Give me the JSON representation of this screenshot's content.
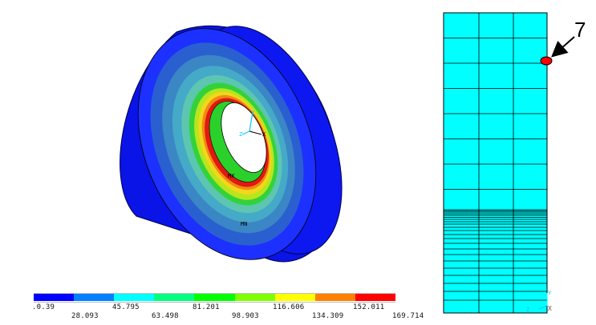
{
  "colors": {
    "contour": [
      "#0000ff",
      "#0080ff",
      "#00ffff",
      "#00ff80",
      "#00ff00",
      "#80ff00",
      "#ffff00",
      "#ff8000",
      "#ff0000"
    ],
    "mesh_fill": "#00ffff",
    "mesh_line": "#000000",
    "marker": "#ff0000",
    "background": "#ffffff"
  },
  "legend": {
    "ticks_top": [
      ".0.39",
      "45.795",
      "81.201",
      "116.606",
      "152.011"
    ],
    "ticks_bottom": [
      "28.093",
      "63.498",
      "98.903",
      "134.309",
      "169.714"
    ]
  },
  "model_labels": {
    "min_label": "MN",
    "max_label": "MX",
    "triad_labels": [
      "Y",
      "Z",
      "X"
    ]
  },
  "mesh_panel": {
    "triad_labels": [
      "Y",
      "Z",
      "X"
    ]
  },
  "callout": {
    "label": "7"
  }
}
